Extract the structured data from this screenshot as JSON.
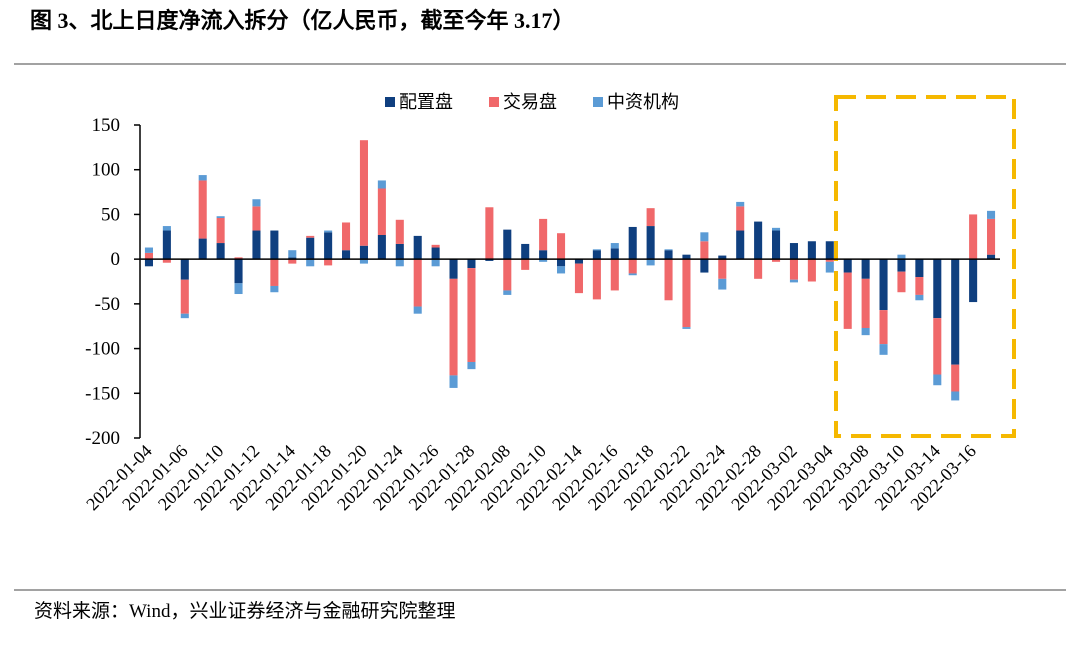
{
  "chart_data": {
    "type": "stacked_bar",
    "title": "图 3、北上日度净流入拆分（亿人民币，截至今年 3.17）",
    "source": "资料来源：Wind，兴业证券经济与金融研究院整理",
    "categories": [
      "2022-01-04",
      null,
      "2022-01-06",
      null,
      "2022-01-10",
      null,
      "2022-01-12",
      null,
      "2022-01-14",
      null,
      "2022-01-18",
      null,
      "2022-01-20",
      null,
      "2022-01-24",
      null,
      "2022-01-26",
      null,
      "2022-01-28",
      null,
      "2022-02-08",
      null,
      "2022-02-10",
      null,
      "2022-02-14",
      null,
      "2022-02-16",
      null,
      "2022-02-18",
      null,
      "2022-02-22",
      null,
      "2022-02-24",
      null,
      "2022-02-28",
      null,
      "2022-03-02",
      null,
      "2022-03-04",
      null,
      "2022-03-08",
      null,
      "2022-03-10",
      null,
      "2022-03-14",
      null,
      "2022-03-16",
      null
    ],
    "series": [
      {
        "name": "配置盘",
        "color": "#0f3f7f",
        "values": [
          -8,
          32,
          -23,
          23,
          18,
          -27,
          32,
          32,
          2,
          24,
          30,
          10,
          15,
          27,
          17,
          26,
          13,
          -22,
          -10,
          -2,
          33,
          17,
          10,
          -8,
          -5,
          10,
          12,
          36,
          37,
          10,
          5,
          -15,
          4,
          32,
          42,
          32,
          18,
          20,
          20,
          -15,
          -22,
          -57,
          -14,
          -20,
          -66,
          -118,
          -48,
          5
        ]
      },
      {
        "name": "交易盘",
        "color": "#f0686a",
        "values": [
          7,
          -4,
          -38,
          65,
          28,
          2,
          27,
          -30,
          -5,
          2,
          -7,
          31,
          118,
          52,
          27,
          -53,
          3,
          -108,
          -105,
          58,
          -35,
          -12,
          35,
          29,
          -33,
          -45,
          -35,
          -16,
          20,
          -46,
          -76,
          20,
          -22,
          27,
          -22,
          -3,
          -23,
          -25,
          -3,
          -63,
          -55,
          -38,
          -23,
          -20,
          -63,
          -30,
          50,
          40
        ]
      },
      {
        "name": "中资机构",
        "color": "#5b9bd5",
        "values": [
          6,
          5,
          -5,
          6,
          2,
          -12,
          8,
          -7,
          8,
          -8,
          2,
          0,
          -5,
          9,
          -8,
          -8,
          -8,
          -14,
          -8,
          0,
          -5,
          0,
          -3,
          -8,
          0,
          1,
          6,
          -2,
          -7,
          1,
          -2,
          10,
          -12,
          5,
          0,
          3,
          -3,
          0,
          -12,
          0,
          -8,
          -12,
          5,
          -6,
          -12,
          -10,
          0,
          9
        ]
      }
    ],
    "ylim": [
      -200,
      150
    ],
    "yticks": [
      -200,
      -150,
      -100,
      -50,
      0,
      50,
      100,
      150
    ]
  }
}
